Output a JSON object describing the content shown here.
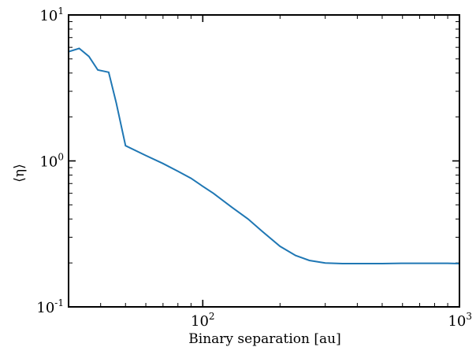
{
  "chart_data": {
    "type": "line",
    "xlabel": "Binary separation [au]",
    "ylabel": "⟨η⟩",
    "xscale": "log",
    "yscale": "log",
    "xlim": [
      30,
      1000
    ],
    "ylim": [
      0.1,
      10
    ],
    "grid": false,
    "series_color": "#1f77b4",
    "x_ticks": [
      {
        "value": 100,
        "base": "10",
        "exp": "2"
      },
      {
        "value": 1000,
        "base": "10",
        "exp": "3"
      }
    ],
    "y_ticks": [
      {
        "value": 0.1,
        "base": "10",
        "exp": "-1"
      },
      {
        "value": 1,
        "base": "10",
        "exp": "0"
      },
      {
        "value": 10,
        "base": "10",
        "exp": "1"
      }
    ],
    "series": [
      {
        "x": [
          30,
          33,
          36,
          39,
          43,
          46,
          50,
          60,
          70,
          80,
          90,
          100,
          110,
          130,
          150,
          170,
          200,
          230,
          260,
          300,
          350,
          400,
          500,
          600,
          700,
          800,
          900,
          1000
        ],
        "y": [
          5.6,
          5.9,
          5.2,
          4.2,
          4.05,
          2.5,
          1.27,
          1.09,
          0.96,
          0.85,
          0.76,
          0.67,
          0.6,
          0.48,
          0.4,
          0.33,
          0.26,
          0.225,
          0.208,
          0.2,
          0.198,
          0.198,
          0.198,
          0.199,
          0.199,
          0.199,
          0.199,
          0.198
        ]
      }
    ]
  }
}
